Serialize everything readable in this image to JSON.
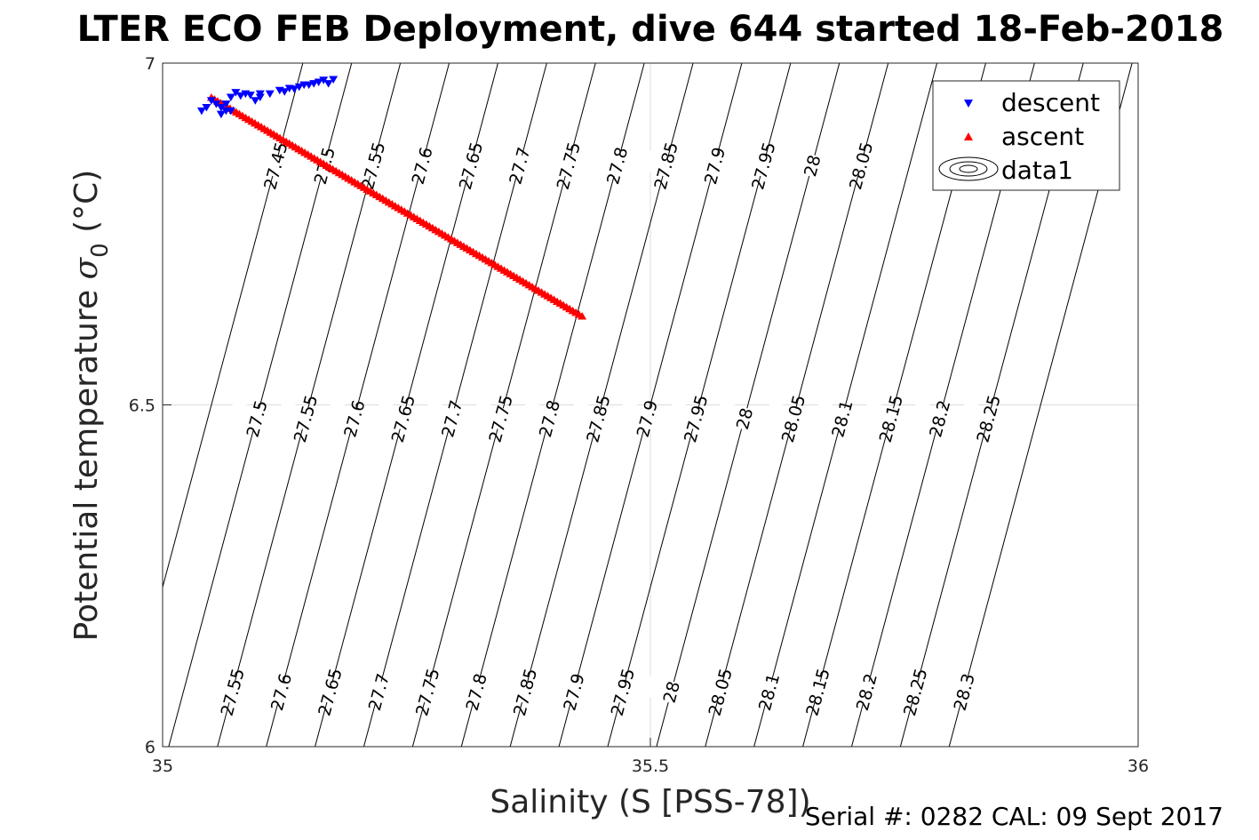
{
  "chart_data": {
    "type": "scatter",
    "title": "LTER ECO FEB Deployment, dive 644 started 18-Feb-2018",
    "xlabel": "Salinity (S [PSS-78])",
    "ylabel_main": "Potential temperature ",
    "ylabel_symbol": "σ",
    "ylabel_sub": "0",
    "ylabel_unit": " (°C)",
    "xlim": [
      35,
      36
    ],
    "ylim": [
      6,
      7
    ],
    "x_ticks": [
      35,
      35.5,
      36
    ],
    "x_tick_labels": [
      "35",
      "35.5",
      "36"
    ],
    "y_ticks": [
      6,
      6.5,
      7
    ],
    "y_tick_labels": [
      "6",
      "6.5",
      "7"
    ],
    "grid": true,
    "legend": {
      "placement": "top-right",
      "entries": [
        {
          "label": "descent",
          "marker": "triangle-down",
          "color": "#0000ff"
        },
        {
          "label": "ascent",
          "marker": "triangle-up",
          "color": "#ff0000"
        },
        {
          "label": "data1",
          "marker": "contour",
          "color": "#000000"
        }
      ]
    },
    "series": [
      {
        "name": "descent",
        "marker": "triangle-down",
        "color": "#0000ff",
        "points": [
          [
            35.05,
            6.945
          ],
          [
            35.055,
            6.94
          ],
          [
            35.06,
            6.935
          ],
          [
            35.065,
            6.94
          ],
          [
            35.07,
            6.95
          ],
          [
            35.08,
            6.952
          ],
          [
            35.09,
            6.953
          ],
          [
            35.1,
            6.955
          ],
          [
            35.095,
            6.945
          ],
          [
            35.1,
            6.95
          ],
          [
            35.11,
            6.955
          ],
          [
            35.12,
            6.96
          ],
          [
            35.13,
            6.963
          ],
          [
            35.14,
            6.965
          ],
          [
            35.15,
            6.968
          ],
          [
            35.155,
            6.97
          ],
          [
            35.145,
            6.968
          ],
          [
            35.16,
            6.972
          ],
          [
            35.165,
            6.975
          ],
          [
            35.175,
            6.976
          ],
          [
            35.17,
            6.97
          ],
          [
            35.06,
            6.925
          ],
          [
            35.065,
            6.93
          ],
          [
            35.07,
            6.93
          ],
          [
            35.04,
            6.93
          ],
          [
            35.045,
            6.935
          ],
          [
            35.085,
            6.955
          ],
          [
            35.075,
            6.957
          ],
          [
            35.125,
            6.958
          ],
          [
            35.135,
            6.962
          ]
        ]
      },
      {
        "name": "ascent",
        "marker": "triangle-up",
        "color": "#ff0000",
        "line": {
          "x0": 35.05,
          "y0": 6.95,
          "x1": 35.43,
          "y1": 6.63,
          "n": 120
        }
      }
    ],
    "isopycnals": {
      "color": "#000000",
      "slope_ds_per_dt": 0.1875,
      "levels": [
        27.45,
        27.5,
        27.55,
        27.6,
        27.65,
        27.7,
        27.75,
        27.8,
        27.85,
        27.9,
        27.95,
        28.0,
        28.05,
        28.1,
        28.15,
        28.2,
        28.25,
        28.3
      ],
      "label_rows": [
        {
          "theta": 6.85,
          "levels": [
            27.45,
            27.5,
            27.55,
            27.6,
            27.65,
            27.7,
            27.75,
            27.8,
            27.85,
            27.9,
            27.95,
            28.0,
            28.05
          ],
          "labels": [
            "27.45",
            "27.5",
            "27.55",
            "27.6",
            "27.65",
            "27.7",
            "27.75",
            "27.8",
            "27.85",
            "27.9",
            "27.95",
            "28",
            "28.05"
          ]
        },
        {
          "theta": 6.48,
          "levels": [
            27.5,
            27.55,
            27.6,
            27.65,
            27.7,
            27.75,
            27.8,
            27.85,
            27.9,
            27.95,
            28.0,
            28.05,
            28.1,
            28.15,
            28.2,
            28.25
          ],
          "labels": [
            "27.5",
            "27.55",
            "27.6",
            "27.65",
            "27.7",
            "27.75",
            "27.8",
            "27.85",
            "27.9",
            "27.95",
            "28",
            "28.05",
            "28.1",
            "28.15",
            "28.2",
            "28.25"
          ]
        },
        {
          "theta": 6.08,
          "levels": [
            27.55,
            27.6,
            27.65,
            27.7,
            27.75,
            27.8,
            27.85,
            27.9,
            27.95,
            28.0,
            28.05,
            28.1,
            28.15,
            28.2,
            28.25,
            28.3
          ],
          "labels": [
            "27.55",
            "27.6",
            "27.65",
            "27.7",
            "27.75",
            "27.8",
            "27.85",
            "27.9",
            "27.95",
            "28",
            "28.05",
            "28.1",
            "28.15",
            "28.2",
            "28.25",
            "28.3"
          ]
        }
      ]
    },
    "footer": "Serial #: 0282  CAL: 09 Sept 2017"
  }
}
